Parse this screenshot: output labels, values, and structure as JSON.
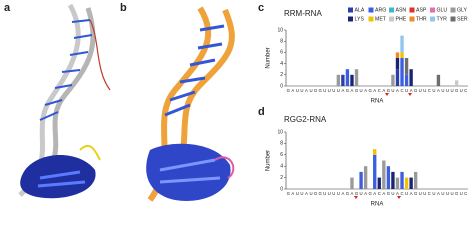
{
  "panel_labels": [
    "a",
    "b",
    "c",
    "d"
  ],
  "chart_data": [
    {
      "type": "bar",
      "stacked": true,
      "title": "RRM-RNA",
      "x_label": "RNA",
      "y_label": "Number",
      "categories": [
        "G",
        "A",
        "U",
        "U",
        "A",
        "U",
        "G",
        "G",
        "U",
        "U",
        "U",
        "U",
        "A",
        "G",
        "A",
        "G",
        "U",
        "A",
        "G",
        "A",
        "C",
        "A",
        "G",
        "U",
        "A",
        "C",
        "U",
        "A",
        "G",
        "U",
        "U",
        "C",
        "U",
        "A",
        "U",
        "U",
        "U",
        "G",
        "U",
        "C"
      ],
      "ylim": [
        0,
        10
      ],
      "yticks": [
        0,
        2,
        4,
        6,
        8,
        10
      ],
      "series": [
        {
          "name": "ALA",
          "color": "#2a3fa8",
          "values": [
            0,
            0,
            0,
            0,
            0,
            0,
            0,
            0,
            0,
            0,
            0,
            0,
            2,
            0,
            0,
            0,
            0,
            0,
            0,
            0,
            0,
            0,
            0,
            0,
            3,
            0,
            0,
            0,
            0,
            0,
            0,
            0,
            0,
            0,
            0,
            0,
            0,
            0,
            0,
            0
          ]
        },
        {
          "name": "ARG",
          "color": "#3b5fe0",
          "values": [
            0,
            0,
            0,
            0,
            0,
            0,
            0,
            0,
            0,
            0,
            0,
            0,
            0,
            3,
            0,
            0,
            0,
            0,
            0,
            0,
            0,
            0,
            0,
            0,
            0,
            5,
            2,
            0,
            0,
            0,
            0,
            0,
            0,
            0,
            0,
            0,
            0,
            0,
            0,
            0
          ]
        },
        {
          "name": "ASN",
          "color": "#3fb6c9",
          "values": [
            0,
            0,
            0,
            0,
            0,
            0,
            0,
            0,
            0,
            0,
            0,
            0,
            0,
            0,
            0,
            0,
            0,
            0,
            0,
            0,
            0,
            0,
            0,
            0,
            0,
            0,
            0,
            0,
            0,
            0,
            0,
            0,
            0,
            0,
            0,
            0,
            0,
            0,
            0,
            0
          ]
        },
        {
          "name": "ASP",
          "color": "#d9332b",
          "values": [
            0,
            0,
            0,
            0,
            0,
            0,
            0,
            0,
            0,
            0,
            0,
            0,
            0,
            0,
            0,
            0,
            0,
            0,
            0,
            0,
            0,
            0,
            0,
            0,
            0,
            0,
            0,
            0,
            0,
            0,
            0,
            0,
            0,
            0,
            0,
            0,
            0,
            0,
            0,
            0
          ]
        },
        {
          "name": "GLU",
          "color": "#e36fb0",
          "values": [
            0,
            0,
            0,
            0,
            0,
            0,
            0,
            0,
            0,
            0,
            0,
            0,
            0,
            0,
            0,
            0,
            0,
            0,
            0,
            0,
            0,
            0,
            0,
            0,
            0,
            0,
            0,
            0,
            0,
            0,
            0,
            0,
            0,
            0,
            0,
            0,
            0,
            0,
            0,
            0
          ]
        },
        {
          "name": "GLY",
          "color": "#9a9a9a",
          "values": [
            0,
            0,
            0,
            0,
            0,
            0,
            0,
            0,
            0,
            0,
            0,
            2,
            0,
            0,
            0,
            3,
            0,
            0,
            0,
            0,
            0,
            0,
            0,
            2,
            0,
            0,
            0,
            0,
            0,
            0,
            0,
            0,
            0,
            0,
            0,
            0,
            0,
            0,
            0,
            0
          ]
        },
        {
          "name": "LYS",
          "color": "#1b2470",
          "values": [
            0,
            0,
            0,
            0,
            0,
            0,
            0,
            0,
            0,
            0,
            0,
            0,
            0,
            0,
            2,
            0,
            0,
            0,
            0,
            0,
            0,
            0,
            0,
            0,
            2,
            0,
            0,
            3,
            0,
            0,
            0,
            0,
            0,
            0,
            0,
            0,
            0,
            0,
            0,
            0
          ]
        },
        {
          "name": "MET",
          "color": "#f2c200",
          "values": [
            0,
            0,
            0,
            0,
            0,
            0,
            0,
            0,
            0,
            0,
            0,
            0,
            0,
            0,
            0,
            0,
            0,
            0,
            0,
            0,
            0,
            0,
            0,
            0,
            0,
            1,
            0,
            0,
            0,
            0,
            0,
            0,
            0,
            0,
            0,
            0,
            0,
            0,
            0,
            0
          ]
        },
        {
          "name": "PHE",
          "color": "#c8c8c8",
          "values": [
            0,
            0,
            0,
            0,
            0,
            0,
            0,
            0,
            0,
            0,
            0,
            0,
            0,
            0,
            0,
            0,
            0,
            0,
            0,
            0,
            0,
            0,
            0,
            0,
            0,
            0,
            0,
            0,
            0,
            0,
            0,
            0,
            0,
            0,
            0,
            0,
            0,
            1,
            0,
            0
          ]
        },
        {
          "name": "THR",
          "color": "#f08a24",
          "values": [
            0,
            0,
            0,
            0,
            0,
            0,
            0,
            0,
            0,
            0,
            0,
            0,
            0,
            0,
            0,
            0,
            0,
            0,
            0,
            0,
            0,
            0,
            0,
            0,
            1,
            0,
            0,
            0,
            0,
            0,
            0,
            0,
            0,
            0,
            0,
            0,
            0,
            0,
            0,
            0
          ]
        },
        {
          "name": "TYR",
          "color": "#8fc7ee",
          "values": [
            0,
            0,
            0,
            0,
            0,
            0,
            0,
            0,
            0,
            0,
            0,
            0,
            0,
            0,
            0,
            0,
            0,
            0,
            0,
            0,
            0,
            0,
            0,
            0,
            0,
            3,
            0,
            0,
            0,
            0,
            0,
            0,
            0,
            0,
            0,
            0,
            0,
            0,
            0,
            0
          ]
        },
        {
          "name": "SER",
          "color": "#6e6e6e",
          "values": [
            0,
            0,
            0,
            0,
            0,
            0,
            0,
            0,
            0,
            0,
            0,
            0,
            0,
            0,
            0,
            0,
            0,
            0,
            0,
            0,
            0,
            0,
            0,
            0,
            0,
            0,
            3,
            0,
            0,
            0,
            0,
            0,
            0,
            2,
            0,
            0,
            0,
            0,
            0,
            0
          ]
        }
      ]
    },
    {
      "type": "bar",
      "stacked": true,
      "title": "RGG2-RNA",
      "x_label": "RNA",
      "y_label": "Number",
      "categories": [
        "G",
        "A",
        "U",
        "U",
        "A",
        "U",
        "G",
        "G",
        "U",
        "U",
        "U",
        "U",
        "A",
        "G",
        "A",
        "G",
        "U",
        "A",
        "G",
        "A",
        "C",
        "A",
        "G",
        "U",
        "A",
        "C",
        "U",
        "A",
        "G",
        "U",
        "U",
        "C",
        "U",
        "A",
        "U",
        "U",
        "U",
        "G",
        "U",
        "C"
      ],
      "ylim": [
        0,
        10
      ],
      "yticks": [
        0,
        2,
        4,
        6,
        8,
        10
      ],
      "series": [
        {
          "color": "#3b5fe0",
          "values": [
            0,
            0,
            0,
            0,
            0,
            0,
            0,
            0,
            0,
            0,
            0,
            0,
            0,
            0,
            0,
            0,
            3,
            0,
            0,
            6,
            0,
            0,
            4,
            0,
            0,
            3,
            0,
            0,
            0,
            0,
            0,
            0,
            0,
            0,
            0,
            0,
            0,
            0,
            0,
            0
          ]
        },
        {
          "color": "#1b2470",
          "values": [
            0,
            0,
            0,
            0,
            0,
            0,
            0,
            0,
            0,
            0,
            0,
            0,
            0,
            0,
            0,
            0,
            0,
            0,
            0,
            0,
            2,
            0,
            0,
            3,
            0,
            0,
            0,
            2,
            0,
            0,
            0,
            0,
            0,
            0,
            0,
            0,
            0,
            0,
            0,
            0
          ]
        },
        {
          "color": "#9a9a9a",
          "values": [
            0,
            0,
            0,
            0,
            0,
            0,
            0,
            0,
            0,
            0,
            0,
            0,
            0,
            0,
            2,
            0,
            0,
            4,
            0,
            0,
            0,
            5,
            0,
            0,
            2,
            0,
            0,
            0,
            3,
            0,
            0,
            0,
            0,
            0,
            0,
            0,
            0,
            0,
            0,
            0
          ]
        },
        {
          "color": "#f2c200",
          "values": [
            0,
            0,
            0,
            0,
            0,
            0,
            0,
            0,
            0,
            0,
            0,
            0,
            0,
            0,
            0,
            0,
            0,
            0,
            0,
            1,
            0,
            0,
            0,
            0,
            0,
            0,
            2,
            0,
            0,
            0,
            0,
            0,
            0,
            0,
            0,
            0,
            0,
            0,
            0,
            0
          ]
        }
      ]
    }
  ]
}
